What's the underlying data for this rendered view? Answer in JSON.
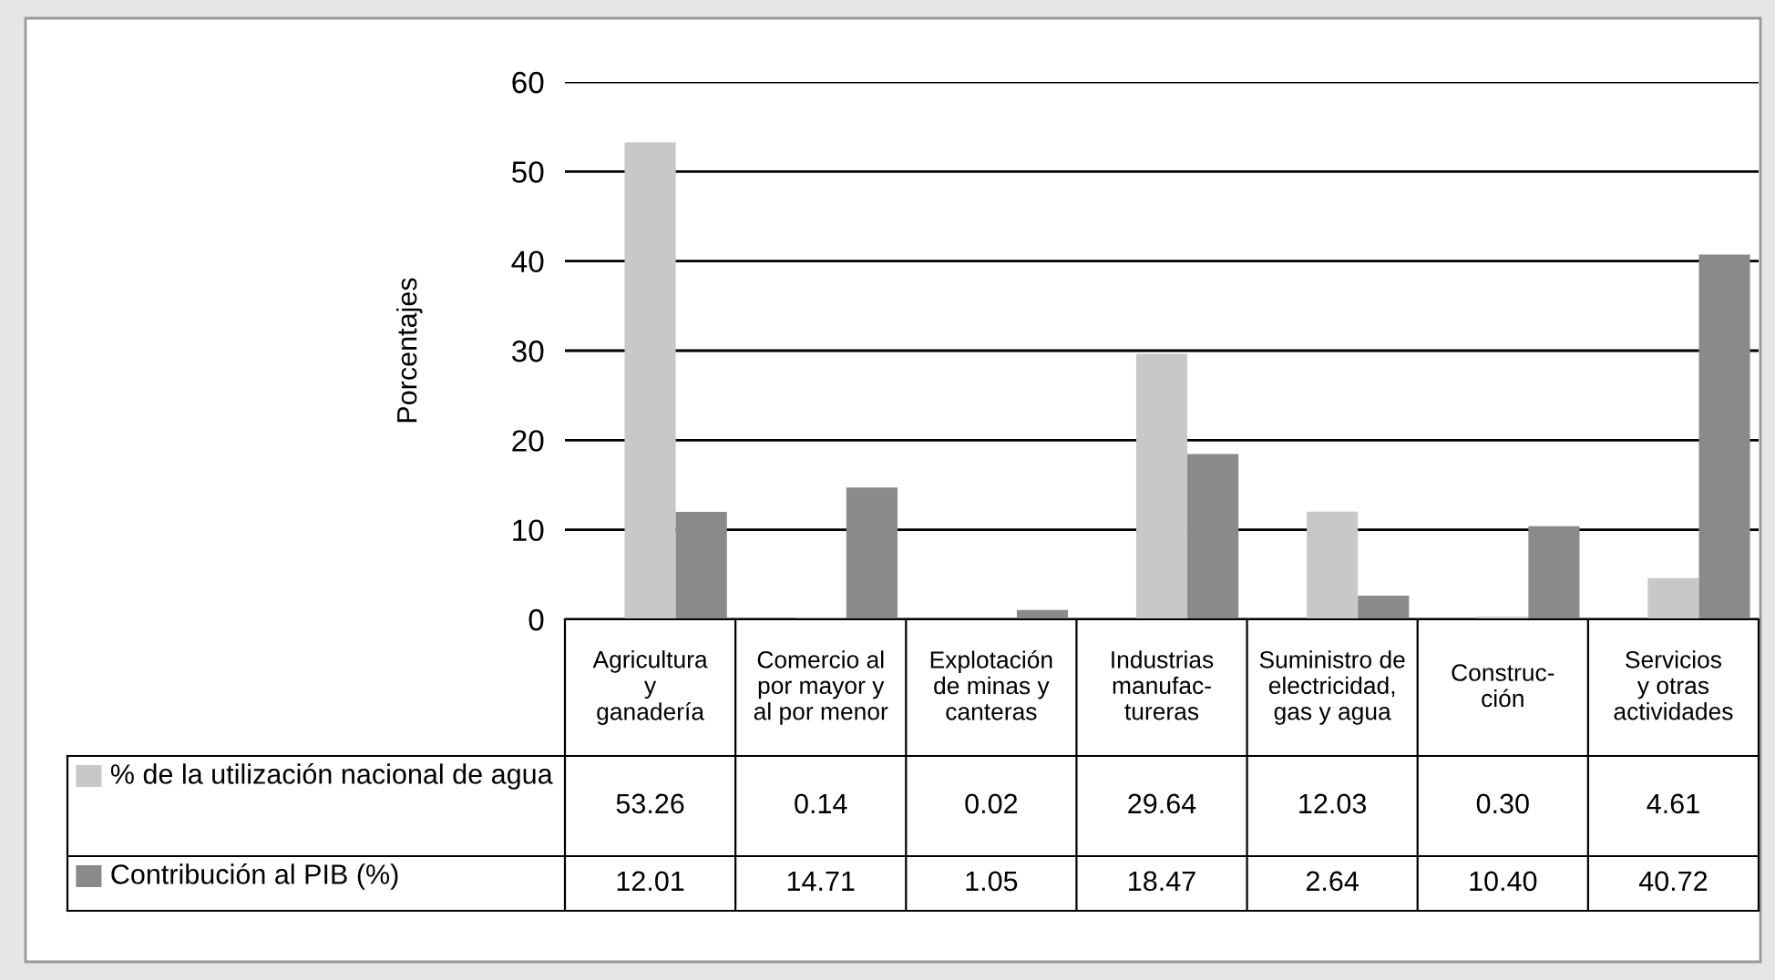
{
  "chart_data": {
    "type": "bar",
    "ylabel": "Porcentajes",
    "categories": [
      "Agricultura\ny\nganadería",
      "Comercio al\npor mayor y\nal por menor",
      "Explotación\nde minas y\ncanteras",
      "Industrias\nmanufac-\ntureras",
      "Suministro de\nelectricidad,\ngas y agua",
      "Construc-\nción",
      "Servicios\ny otras\nactividades"
    ],
    "series": [
      {
        "name": "% de la utilización nacional de agua",
        "color": "#c8c8c8",
        "values": [
          53.26,
          0.14,
          0.02,
          29.64,
          12.03,
          0.3,
          4.61
        ],
        "value_labels": [
          "53.26",
          "0.14",
          "0.02",
          "29.64",
          "12.03",
          "0.30",
          "4.61"
        ]
      },
      {
        "name": "Contribución al PIB (%)",
        "color": "#8a8a8a",
        "values": [
          12.01,
          14.71,
          1.05,
          18.47,
          2.64,
          10.4,
          40.72
        ],
        "value_labels": [
          "12.01",
          "14.71",
          "1.05",
          "18.47",
          "2.64",
          "10.40",
          "40.72"
        ]
      }
    ],
    "ylim": [
      0,
      60
    ],
    "yticks": [
      0,
      10,
      20,
      30,
      40,
      50,
      60
    ],
    "grid": "y",
    "legend": "bottom left"
  }
}
